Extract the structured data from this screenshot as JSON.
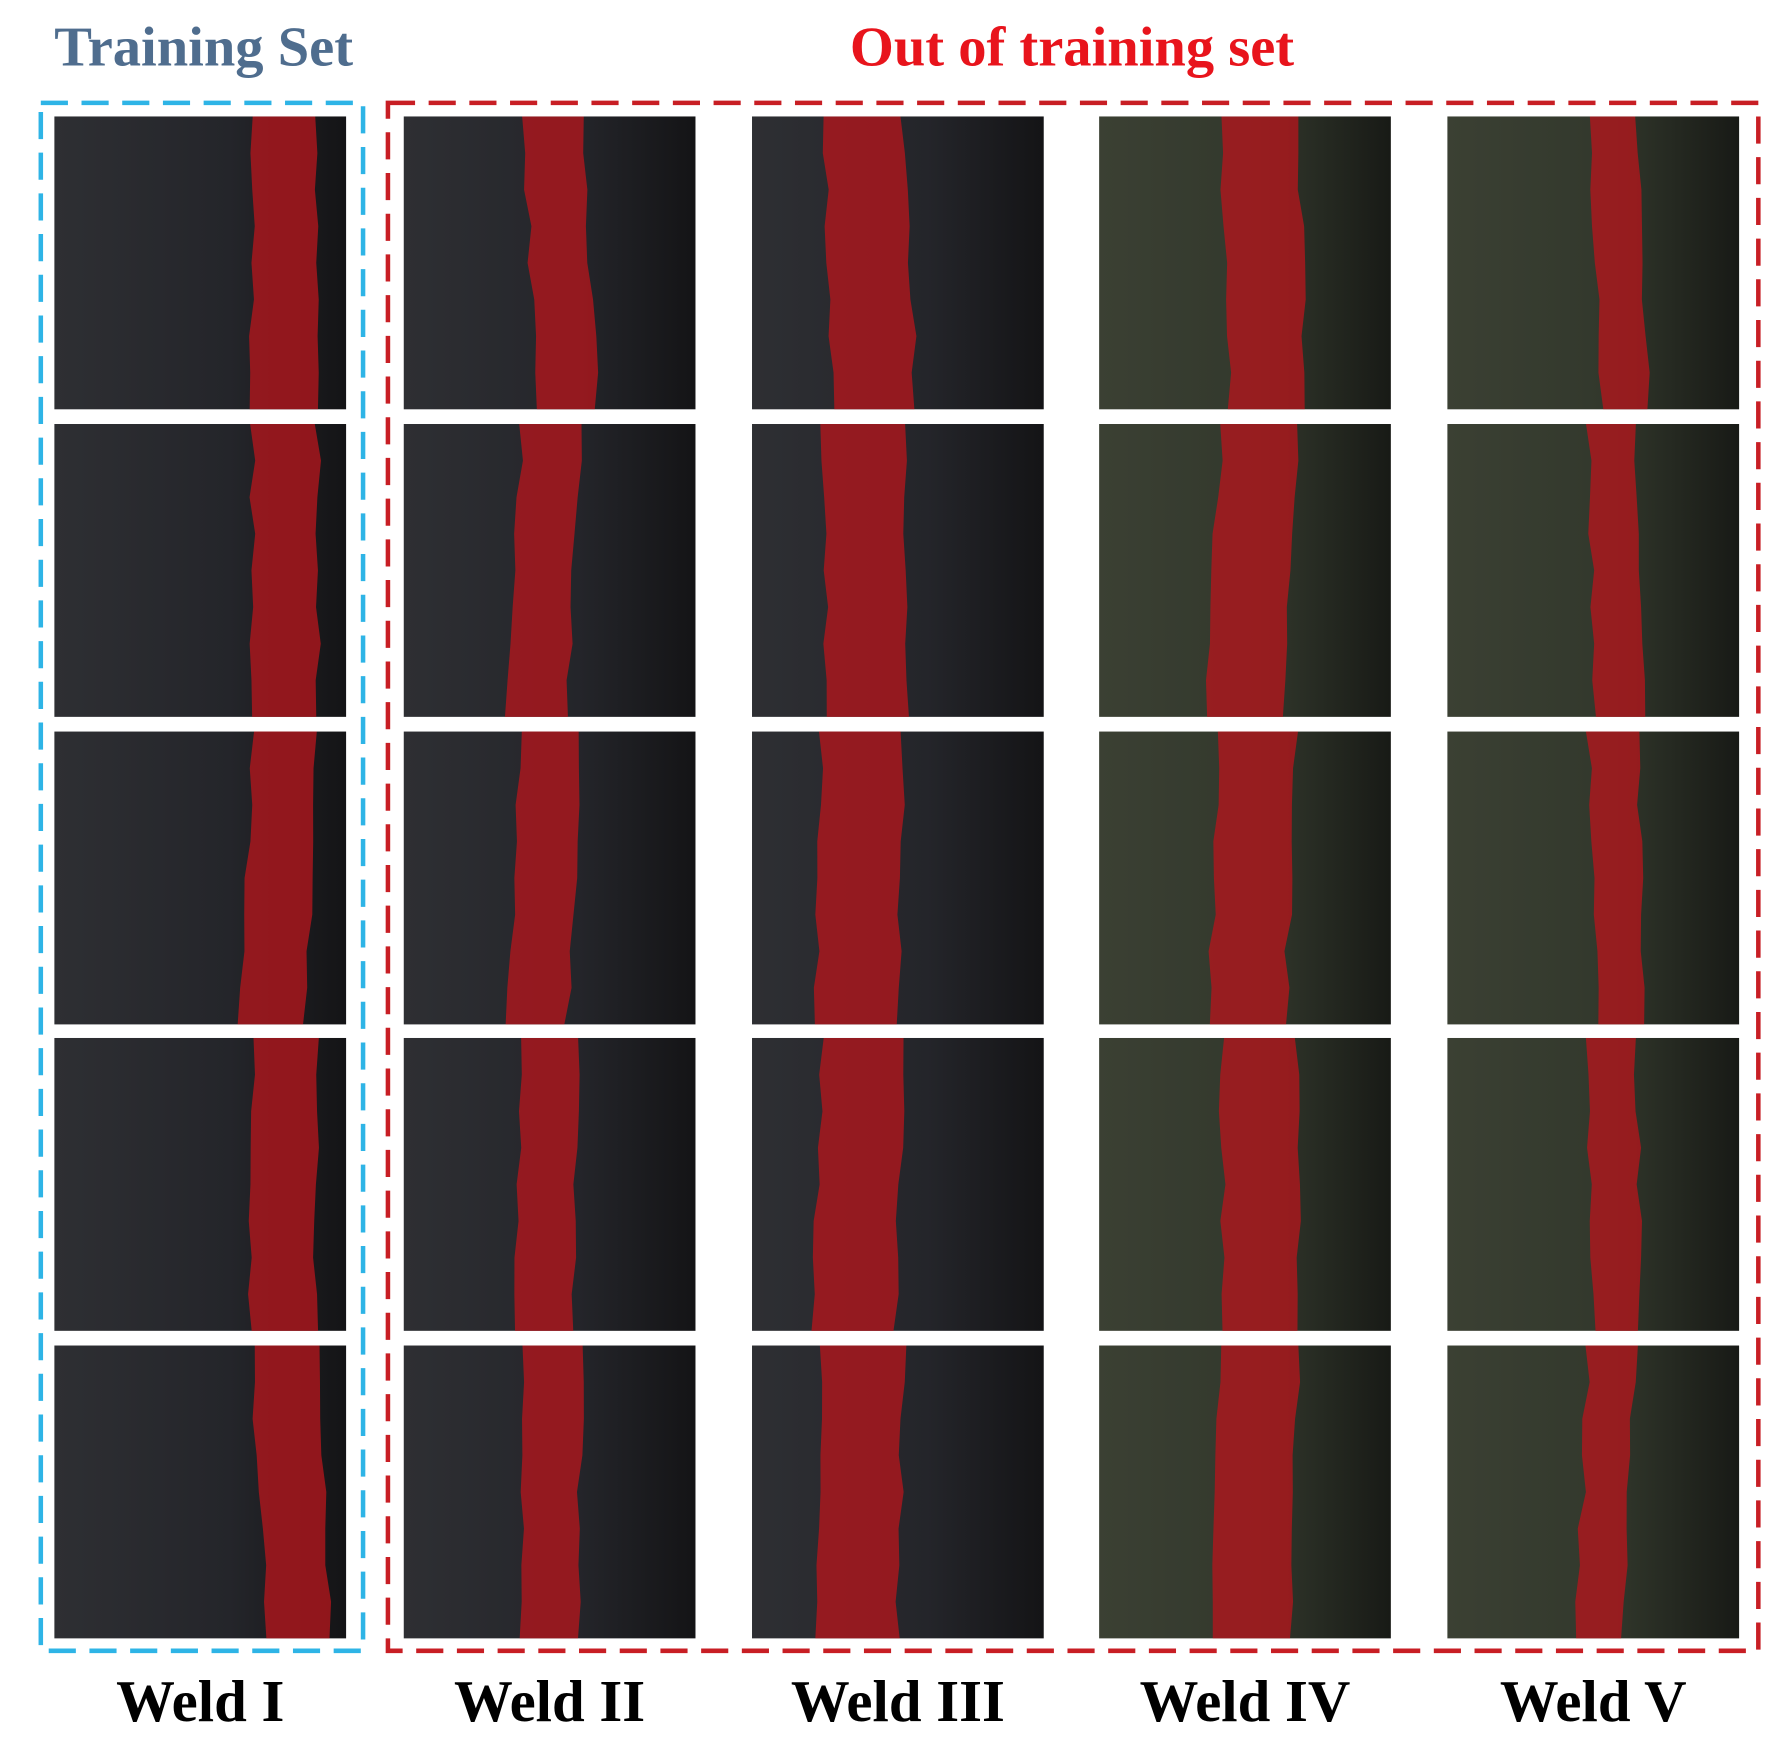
{
  "titles": {
    "training_set": "Training Set",
    "out_of_training_set": "Out of training set"
  },
  "columns": [
    "Weld I",
    "Weld II",
    "Weld III",
    "Weld IV",
    "Weld V"
  ]
}
